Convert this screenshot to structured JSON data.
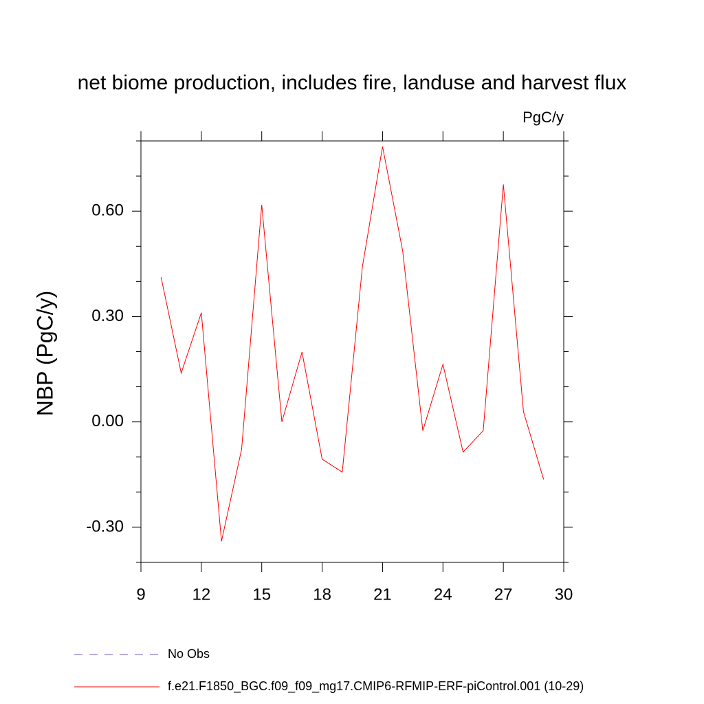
{
  "chart_data": {
    "type": "line",
    "title": "net biome production, includes fire, landuse and harvest flux",
    "units": "PgC/y",
    "y_label": "NBP  (PgC/y)",
    "x": [
      10,
      11,
      12,
      13,
      14,
      15,
      16,
      17,
      18,
      19,
      20,
      21,
      22,
      23,
      24,
      25,
      26,
      27,
      28,
      29
    ],
    "series": [
      {
        "name": "No Obs",
        "color": "#6a5acd",
        "dashed": true,
        "values": [
          null,
          null,
          null,
          null,
          null,
          null,
          null,
          null,
          null,
          null,
          null,
          null,
          null,
          null,
          null,
          null,
          null,
          null,
          null,
          null
        ]
      },
      {
        "name": "f.e21.F1850_BGC.f09_f09_mg17.CMIP6-RFMIP-ERF-piControl.001 (10-29)",
        "color": "#ff0000",
        "dashed": false,
        "values": [
          0.412,
          0.139,
          0.311,
          -0.34,
          -0.078,
          0.618,
          0.0,
          0.199,
          -0.106,
          -0.143,
          0.442,
          0.784,
          0.487,
          -0.025,
          0.164,
          -0.086,
          -0.025,
          0.676,
          0.029,
          -0.164
        ]
      }
    ],
    "xlim": [
      9,
      30
    ],
    "xticks": [
      9,
      12,
      15,
      18,
      21,
      24,
      27,
      30
    ],
    "ylim": [
      -0.4,
      0.8
    ],
    "yticks": [
      {
        "value": -0.3,
        "label": "-0.30"
      },
      {
        "value": 0,
        "label": "0.00"
      },
      {
        "value": 0.3,
        "label": "0.30"
      },
      {
        "value": 0.6,
        "label": "0.60"
      }
    ],
    "yminorticks": [
      -0.4,
      -0.2,
      -0.1,
      0.1,
      0.2,
      0.4,
      0.5,
      0.7,
      0.8
    ],
    "grid": false
  }
}
